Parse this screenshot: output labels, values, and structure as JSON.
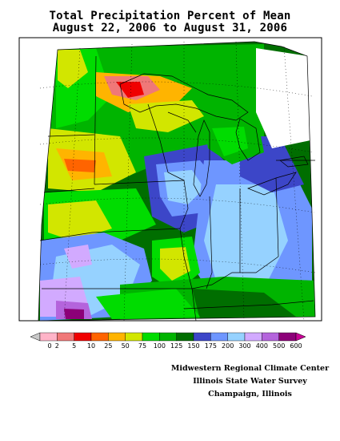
{
  "title": {
    "line1": "Total Precipitation Percent of Mean",
    "line2": "August 22, 2006 to August 31, 2006"
  },
  "legend": {
    "labels": [
      "0",
      "2",
      "5",
      "10",
      "25",
      "50",
      "75",
      "100",
      "125",
      "150",
      "175",
      "200",
      "300",
      "400",
      "500",
      "600"
    ],
    "colors": [
      "#c8c8c8",
      "#ffb4c8",
      "#f07878",
      "#f00000",
      "#ff6400",
      "#ffb400",
      "#d2e600",
      "#00dc00",
      "#00b400",
      "#006e00",
      "#3c46c8",
      "#6e96ff",
      "#96d2ff",
      "#d2aaff",
      "#b464dc",
      "#8c0078",
      "#c80096"
    ]
  },
  "credits": {
    "line1": "Midwestern Regional Climate Center",
    "line2": "Illinois State Water Survey",
    "line3": "Champaign, Illinois"
  },
  "map_colors": {
    "outline": "#000000",
    "ocean": "#ffffff",
    "lake_pale": "#c0c0c0"
  }
}
